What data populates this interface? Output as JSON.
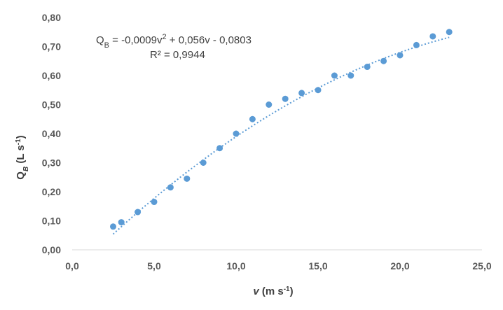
{
  "chart_data": {
    "type": "scatter",
    "xlim": [
      0,
      25
    ],
    "ylim": [
      0,
      0.8
    ],
    "x_ticks": [
      0,
      5,
      10,
      15,
      20,
      25
    ],
    "x_tick_labels": [
      "0,0",
      "5,0",
      "10,0",
      "15,0",
      "20,0",
      "25,0"
    ],
    "y_ticks": [
      0,
      0.1,
      0.2,
      0.3,
      0.4,
      0.5,
      0.6,
      0.7,
      0.8
    ],
    "y_tick_labels": [
      "0,00",
      "0,10",
      "0,20",
      "0,30",
      "0,40",
      "0,50",
      "0,60",
      "0,70",
      "0,80"
    ],
    "xlabel_main": "v",
    "xlabel_rest": " (m s",
    "xlabel_sup": "-1",
    "xlabel_close": ")",
    "ylabel_main": "Q",
    "ylabel_sub": "B",
    "ylabel_rest": " (L s",
    "ylabel_sup": "-1",
    "ylabel_close": ")",
    "grid": false,
    "marker_color": "#5B9BD5",
    "points": [
      {
        "x": 2.5,
        "y": 0.08
      },
      {
        "x": 3,
        "y": 0.095
      },
      {
        "x": 4,
        "y": 0.13
      },
      {
        "x": 5,
        "y": 0.165
      },
      {
        "x": 6,
        "y": 0.215
      },
      {
        "x": 7,
        "y": 0.245
      },
      {
        "x": 8,
        "y": 0.3
      },
      {
        "x": 9,
        "y": 0.35
      },
      {
        "x": 10,
        "y": 0.4
      },
      {
        "x": 11,
        "y": 0.45
      },
      {
        "x": 12,
        "y": 0.5
      },
      {
        "x": 13,
        "y": 0.52
      },
      {
        "x": 14,
        "y": 0.54
      },
      {
        "x": 15,
        "y": 0.55
      },
      {
        "x": 16,
        "y": 0.6
      },
      {
        "x": 17,
        "y": 0.6
      },
      {
        "x": 18,
        "y": 0.63
      },
      {
        "x": 19,
        "y": 0.65
      },
      {
        "x": 20,
        "y": 0.67
      },
      {
        "x": 21,
        "y": 0.705
      },
      {
        "x": 22,
        "y": 0.735
      },
      {
        "x": 23,
        "y": 0.75
      }
    ],
    "trendline": {
      "kind": "polynomial",
      "coefficients": {
        "a": -0.0009,
        "b": 0.056,
        "c": -0.0803
      },
      "x_range": [
        2.5,
        23
      ],
      "equation_prefix": "Q",
      "equation_sub": "B",
      "equation_mid": " = -0,0009v",
      "equation_sup": "2",
      "equation_end": " + 0,056v  - 0,0803",
      "r2_label": "R² = 0,9944"
    }
  }
}
